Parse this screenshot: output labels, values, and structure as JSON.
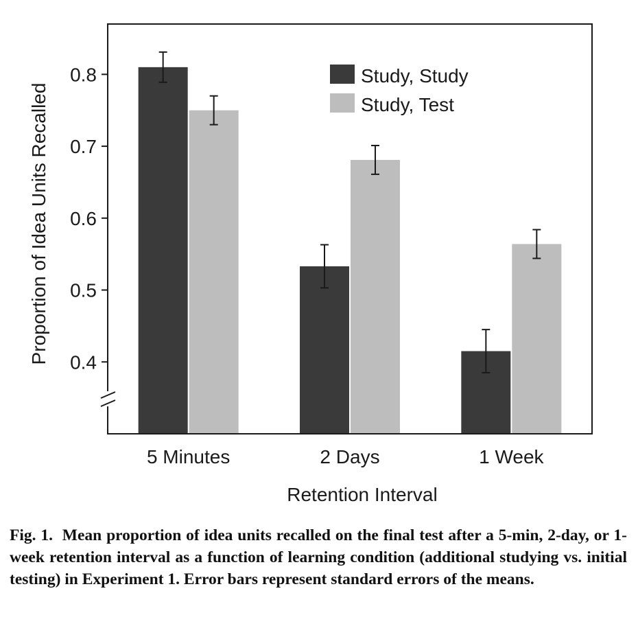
{
  "chart_data": {
    "type": "bar",
    "xlabel": "Retention Interval",
    "ylabel": "Proportion of Idea Units Recalled",
    "categories": [
      "5 Minutes",
      "2 Days",
      "1 Week"
    ],
    "series": [
      {
        "name": "Study, Study",
        "values": [
          0.81,
          0.533,
          0.415
        ],
        "errors": [
          0.021,
          0.03,
          0.03
        ],
        "color": "#3a3a3a"
      },
      {
        "name": "Study, Test",
        "values": [
          0.75,
          0.681,
          0.564
        ],
        "errors": [
          0.02,
          0.02,
          0.02
        ],
        "color": "#bdbdbd"
      }
    ],
    "yticks": [
      "0.4",
      "0.5",
      "0.6",
      "0.7",
      "0.8"
    ],
    "ylim": [
      0.3,
      0.87
    ],
    "axis_break": true,
    "legend_position": "top-right",
    "grid": false
  },
  "caption": {
    "label": "Fig. 1.",
    "text": "Mean proportion of idea units recalled on the final test after a 5-min, 2-day, or 1-week retention interval as a function of learning condition (additional studying vs. initial testing) in Experiment 1. Error bars represent standard errors of the means."
  }
}
